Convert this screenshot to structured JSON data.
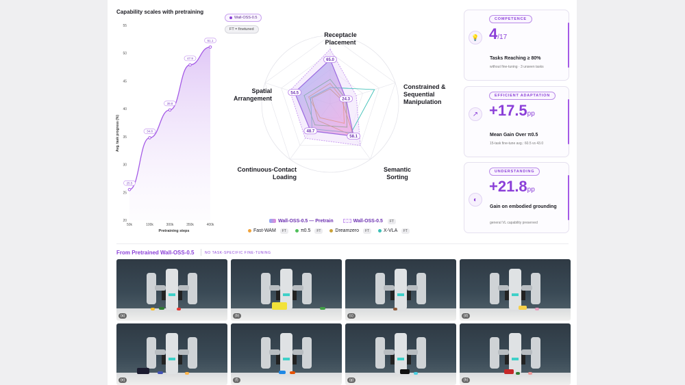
{
  "line_chart_title": "Capability scales with pretraining",
  "chart_data": [
    {
      "type": "line",
      "title": "Capability scales with pretraining",
      "xlabel": "Pretraining steps",
      "ylabel": "Avg. task progress (%)",
      "x": [
        "50k",
        "100k",
        "300k",
        "350k",
        "400k"
      ],
      "series": [
        {
          "name": "Wall-OSS-0.5",
          "points": [
            [
              0,
              25.5
            ],
            [
              1,
              34.8
            ],
            [
              2,
              39.8
            ],
            [
              3,
              47.9
            ],
            [
              4,
              51.1
            ]
          ]
        }
      ],
      "data_labels": [
        "25.5",
        "34.8",
        "39.8",
        "47.9",
        "51.1"
      ],
      "ylim": [
        20,
        55
      ],
      "yticks": [
        "55",
        "50",
        "45",
        "40",
        "35",
        "30",
        "25",
        "20"
      ],
      "color": "#a45ae6"
    },
    {
      "type": "radar",
      "axes": [
        "Receptacle Placement",
        "Constrained & Sequential Manipulation",
        "Semantic Sorting",
        "Continuous-Contact Loading",
        "Spatial Arrangement"
      ],
      "series": [
        {
          "name": "Wall-OSS-0.5 — Pretrain",
          "values": [
            65.0,
            24.3,
            58.1,
            48.7,
            54.5
          ],
          "color": "#b57bea"
        },
        {
          "name": "Wall-OSS-0.5",
          "tag": "FT",
          "values": [
            80,
            40,
            75,
            62,
            62
          ],
          "color": "#d9b4f2"
        },
        {
          "name": "Fast-WAM",
          "tag": "FT",
          "values": [
            30,
            20,
            35,
            25,
            33
          ],
          "color": "#f0a33b"
        },
        {
          "name": "π0.5",
          "tag": "FT",
          "values": [
            36,
            24,
            42,
            38,
            40
          ],
          "color": "#4fbf5a"
        },
        {
          "name": "Dreamzero",
          "tag": "FT",
          "values": [
            22,
            18,
            58,
            30,
            28
          ],
          "color": "#caa23a"
        },
        {
          "name": "X-VLA",
          "tag": "FT",
          "values": [
            24,
            68,
            52,
            45,
            30
          ],
          "color": "#3bbfb6"
        }
      ],
      "data_labels": [
        "65.0",
        "24.3",
        "58.1",
        "48.7",
        "54.5"
      ],
      "max": 100
    }
  ],
  "radar_labels": {
    "receptacle": [
      "Receptacle",
      "Placement"
    ],
    "constrained": [
      "Constrained &",
      "Sequential",
      "Manipulation"
    ],
    "semantic": [
      "Semantic",
      "Sorting"
    ],
    "continuous": [
      "Continuous-Contact",
      "Loading"
    ],
    "spatial": [
      "Spatial",
      "Arrangement"
    ]
  },
  "top_pills": {
    "model": "Wall-OSS-0.5",
    "ft_note": "FT = finetuned"
  },
  "legend": {
    "row1": [
      {
        "label": "Wall-OSS-0.5 — Pretrain"
      },
      {
        "label": "Wall-OSS-0.5",
        "tag": "FT"
      }
    ],
    "row2": [
      {
        "label": "Fast-WAM",
        "tag": "FT",
        "color": "#f0a33b"
      },
      {
        "label": "π0.5",
        "tag": "FT",
        "color": "#4fbf5a"
      },
      {
        "label": "Dreamzero",
        "tag": "FT",
        "color": "#caa23a"
      },
      {
        "label": "X-VLA",
        "tag": "FT",
        "color": "#3bbfb6"
      }
    ]
  },
  "cards": [
    {
      "tag": "COMPETENCE",
      "icon": "lightbulb-icon",
      "glyph": "💡",
      "big": "4",
      "big_suffix": "/17",
      "label": "Tasks Reaching ≥ 80%",
      "sub": "without fine-tuning · 3 unseen tasks"
    },
    {
      "tag": "EFFICIENT ADAPTATION",
      "icon": "trend-up-icon",
      "glyph": "↗",
      "big": "+17.5",
      "big_suffix": "pp",
      "label": "Mean Gain Over π0.5",
      "sub": "15-task fine-tune avg.: 60.5 vs 43.0"
    },
    {
      "tag": "UNDERSTANDING",
      "icon": "brain-icon",
      "glyph": "◐",
      "big": "+21.8",
      "big_suffix": "pp",
      "label": "Gain on embodied grounding",
      "sub": "general VL capability preserved"
    }
  ],
  "gallery": {
    "title": "From Pretrained Wall-OSS-0.5",
    "subtitle": "NO TASK-SPECIFIC FINE-TUNING",
    "items": [
      "(a)",
      "(b)",
      "(c)",
      "(d)",
      "(e)",
      "(f)",
      "(g)",
      "(h)"
    ]
  }
}
